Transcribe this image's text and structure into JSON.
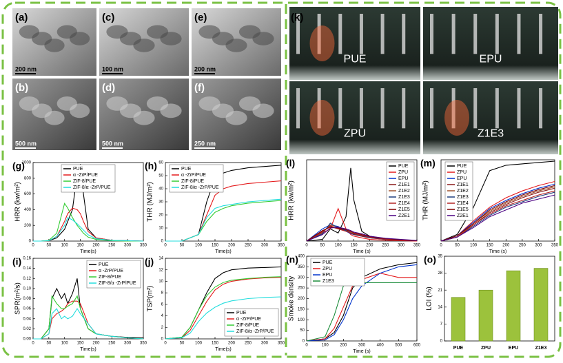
{
  "images": [
    {
      "label": "(a)",
      "scale": "200 nm"
    },
    {
      "label": "(c)",
      "scale": "100 nm"
    },
    {
      "label": "(e)",
      "scale": "200 nm"
    },
    {
      "label": "(b)",
      "scale": "500 nm"
    },
    {
      "label": "(d)",
      "scale": "500 nm"
    },
    {
      "label": "(f)",
      "scale": "250 nm"
    }
  ],
  "video": {
    "label": "(k)",
    "samples": [
      "PUE",
      "EPU",
      "ZPU",
      "Z1E3"
    ]
  },
  "chart_data": [
    {
      "type": "line",
      "panel": "(g)",
      "xlabel": "Time(s)",
      "ylabel": "HRR (kw/m²)",
      "legend": "top-center",
      "xlim": [
        0,
        350
      ],
      "xticks": [
        0,
        50,
        100,
        150,
        200,
        250,
        300,
        350
      ],
      "ylim": [
        0,
        1000
      ],
      "yticks": [
        0,
        200,
        400,
        600,
        800,
        1000
      ],
      "x": [
        0,
        25,
        50,
        75,
        100,
        110,
        125,
        140,
        150,
        160,
        175,
        200,
        250,
        300,
        350
      ],
      "series": [
        {
          "name": "PUE",
          "color": "#000000",
          "values": [
            0,
            0,
            5,
            40,
            150,
            250,
            400,
            850,
            980,
            600,
            150,
            40,
            10,
            5,
            0
          ]
        },
        {
          "name": "α -ZrP/PUE",
          "color": "#e41a1c",
          "values": [
            0,
            0,
            5,
            60,
            250,
            350,
            420,
            400,
            350,
            250,
            120,
            40,
            10,
            5,
            0
          ]
        },
        {
          "name": "ZIF-8/PUE",
          "color": "#33cc33",
          "values": [
            0,
            0,
            10,
            100,
            480,
            420,
            300,
            200,
            150,
            100,
            50,
            20,
            5,
            0,
            0
          ]
        },
        {
          "name": "ZIF-8/α -ZrP/PUE",
          "color": "#22dddd",
          "values": [
            0,
            0,
            5,
            60,
            200,
            300,
            270,
            220,
            180,
            140,
            80,
            30,
            10,
            5,
            0
          ]
        }
      ]
    },
    {
      "type": "line",
      "panel": "(h)",
      "xlabel": "Time(s)",
      "ylabel": "THR (MJ/m²)",
      "legend": "top-left",
      "xlim": [
        0,
        350
      ],
      "xticks": [
        0,
        50,
        100,
        150,
        200,
        250,
        300,
        350
      ],
      "ylim": [
        0,
        60
      ],
      "yticks": [
        0,
        10,
        20,
        30,
        40,
        50,
        60
      ],
      "x": [
        0,
        50,
        100,
        125,
        150,
        175,
        200,
        250,
        300,
        350
      ],
      "series": [
        {
          "name": "PUE",
          "color": "#000000",
          "values": [
            0,
            0,
            5,
            30,
            48,
            52,
            54,
            56,
            57,
            58
          ]
        },
        {
          "name": "α -ZrP/PUE",
          "color": "#e41a1c",
          "values": [
            0,
            0,
            5,
            20,
            35,
            40,
            42,
            44,
            45,
            46
          ]
        },
        {
          "name": "ZIF-8/PUE",
          "color": "#33cc33",
          "values": [
            0,
            0,
            5,
            15,
            22,
            25,
            27,
            29,
            30,
            31
          ]
        },
        {
          "name": "ZIF-8/α -ZrP/PUE",
          "color": "#22dddd",
          "values": [
            0,
            0,
            5,
            18,
            25,
            27,
            28,
            30,
            31,
            32
          ]
        }
      ]
    },
    {
      "type": "line",
      "panel": "(i)",
      "xlabel": "Time(s)",
      "ylabel": "SPR(m²/s)",
      "legend": "top-right",
      "xlim": [
        0,
        350
      ],
      "xticks": [
        0,
        50,
        100,
        150,
        200,
        250,
        300,
        350
      ],
      "ylim": [
        0,
        0.16
      ],
      "yticks": [
        {
          "value": 0,
          "label": "0.00"
        },
        0.02,
        0.04,
        0.06,
        0.08,
        {
          "value": 0.1,
          "label": "0.10"
        },
        0.12,
        0.14,
        0.16
      ],
      "x": [
        0,
        25,
        50,
        60,
        75,
        90,
        100,
        110,
        125,
        140,
        150,
        175,
        200,
        250,
        300,
        350
      ],
      "series": [
        {
          "name": "PUE",
          "color": "#000000",
          "values": [
            0,
            0,
            0.02,
            0.08,
            0.1,
            0.08,
            0.09,
            0.07,
            0.09,
            0.12,
            0.06,
            0.02,
            0.01,
            0.005,
            0.003,
            0.002
          ]
        },
        {
          "name": "α -ZrP/PUE",
          "color": "#e41a1c",
          "values": [
            0,
            0,
            0.01,
            0.04,
            0.05,
            0.055,
            0.06,
            0.07,
            0.075,
            0.075,
            0.07,
            0.03,
            0.01,
            0.005,
            0.002,
            0
          ]
        },
        {
          "name": "ZIF-8/PUE",
          "color": "#33cc33",
          "values": [
            0,
            0,
            0.02,
            0.085,
            0.07,
            0.06,
            0.06,
            0.065,
            0.07,
            0.085,
            0.06,
            0.02,
            0.01,
            0.005,
            0.002,
            0
          ]
        },
        {
          "name": "ZIF-8/α -ZrP/PUE",
          "color": "#22dddd",
          "values": [
            0,
            0,
            0.01,
            0.05,
            0.06,
            0.04,
            0.045,
            0.04,
            0.045,
            0.06,
            0.05,
            0.03,
            0.01,
            0.005,
            0.002,
            0
          ]
        }
      ]
    },
    {
      "type": "line",
      "panel": "(j)",
      "xlabel": "Time(s)",
      "ylabel": "TSP(m²)",
      "legend": "bottom-right",
      "xlim": [
        0,
        350
      ],
      "xticks": [
        0,
        50,
        100,
        150,
        200,
        250,
        300,
        350
      ],
      "ylim": [
        0,
        14
      ],
      "yticks": [
        0,
        2,
        4,
        6,
        8,
        10,
        12,
        14
      ],
      "x": [
        0,
        50,
        75,
        100,
        125,
        150,
        175,
        200,
        250,
        300,
        350
      ],
      "series": [
        {
          "name": "PUE",
          "color": "#000000",
          "values": [
            0,
            0.3,
            2,
            5,
            8,
            10.5,
            11.5,
            12,
            12.3,
            12.4,
            12.5
          ]
        },
        {
          "name": "α -ZrP/PUE",
          "color": "#e41a1c",
          "values": [
            0,
            0.2,
            1.5,
            4,
            6.5,
            8.5,
            9.5,
            10,
            10.4,
            10.6,
            10.7
          ]
        },
        {
          "name": "ZIF-8/PUE",
          "color": "#33cc33",
          "values": [
            0,
            0.3,
            2,
            5,
            7.5,
            9,
            9.8,
            10.2,
            10.5,
            10.7,
            10.8
          ]
        },
        {
          "name": "ZIF-8/α -ZrP/PUE",
          "color": "#22dddd",
          "values": [
            0,
            0.2,
            1,
            3,
            4.5,
            5.5,
            6.2,
            6.6,
            7,
            7.2,
            7.3
          ]
        }
      ]
    },
    {
      "type": "line",
      "panel": "(l)",
      "xlabel": "Time (s)",
      "ylabel": "HRR (kw/m²)",
      "legend": "top-right",
      "xlim": [
        0,
        350
      ],
      "xticks": [
        0,
        50,
        100,
        150,
        200,
        250,
        300,
        350
      ],
      "ylim": [
        0,
        1000
      ],
      "x": [
        0,
        50,
        75,
        100,
        125,
        140,
        150,
        175,
        200,
        250,
        300,
        350
      ],
      "series": [
        {
          "name": "PUE",
          "color": "#000000",
          "values": [
            0,
            20,
            150,
            100,
            300,
            900,
            500,
            120,
            60,
            30,
            10,
            5
          ]
        },
        {
          "name": "ZPU",
          "color": "#e41a1c",
          "values": [
            0,
            100,
            150,
            400,
            150,
            80,
            60,
            40,
            20,
            10,
            5,
            0
          ]
        },
        {
          "name": "EPU",
          "color": "#0033cc",
          "values": [
            0,
            150,
            200,
            180,
            120,
            90,
            80,
            60,
            40,
            20,
            10,
            5
          ]
        },
        {
          "name": "Z1E1",
          "color": "#8b1a1a",
          "values": [
            0,
            120,
            180,
            150,
            130,
            100,
            80,
            60,
            40,
            20,
            10,
            5
          ]
        },
        {
          "name": "Z1E2",
          "color": "#a0522d",
          "values": [
            0,
            100,
            200,
            170,
            140,
            110,
            90,
            70,
            50,
            30,
            15,
            5
          ]
        },
        {
          "name": "Z1E3",
          "color": "#1f3f7f",
          "values": [
            0,
            90,
            220,
            160,
            130,
            100,
            85,
            65,
            45,
            25,
            12,
            5
          ]
        },
        {
          "name": "Z1E4",
          "color": "#b22222",
          "values": [
            0,
            110,
            190,
            150,
            120,
            100,
            90,
            70,
            50,
            25,
            10,
            5
          ]
        },
        {
          "name": "Z1E5",
          "color": "#800000",
          "values": [
            0,
            130,
            170,
            160,
            140,
            120,
            100,
            80,
            55,
            30,
            15,
            5
          ]
        },
        {
          "name": "Z2E1",
          "color": "#4b0082",
          "values": [
            0,
            80,
            160,
            170,
            150,
            130,
            110,
            90,
            60,
            35,
            20,
            8
          ]
        }
      ]
    },
    {
      "type": "line",
      "panel": "(m)",
      "xlabel": "Time (s)",
      "ylabel": "THR (MJ/m²)",
      "legend": "top-left",
      "xlim": [
        0,
        350
      ],
      "xticks": [
        0,
        50,
        100,
        150,
        200,
        250,
        300,
        350
      ],
      "ylim": [
        0,
        60
      ],
      "x": [
        0,
        50,
        100,
        150,
        200,
        250,
        300,
        350
      ],
      "series": [
        {
          "name": "PUE",
          "color": "#000000",
          "values": [
            0,
            5,
            25,
            52,
            56,
            57,
            58,
            59
          ]
        },
        {
          "name": "ZPU",
          "color": "#e41a1c",
          "values": [
            0,
            4,
            15,
            25,
            32,
            37,
            41,
            44
          ]
        },
        {
          "name": "EPU",
          "color": "#0033cc",
          "values": [
            0,
            4,
            14,
            24,
            30,
            35,
            39,
            42
          ]
        },
        {
          "name": "Z1E1",
          "color": "#8b1a1a",
          "values": [
            0,
            3,
            12,
            21,
            27,
            32,
            36,
            39
          ]
        },
        {
          "name": "Z1E2",
          "color": "#a0522d",
          "values": [
            0,
            3,
            13,
            22,
            28,
            33,
            37,
            40
          ]
        },
        {
          "name": "Z1E3",
          "color": "#1f3f7f",
          "values": [
            0,
            3,
            11,
            19,
            25,
            29,
            33,
            36
          ]
        },
        {
          "name": "Z1E4",
          "color": "#b22222",
          "values": [
            0,
            3,
            12,
            20,
            26,
            30,
            34,
            37
          ]
        },
        {
          "name": "Z1E5",
          "color": "#800000",
          "values": [
            0,
            4,
            13,
            23,
            29,
            34,
            38,
            41
          ]
        },
        {
          "name": "Z2E1",
          "color": "#4b0082",
          "values": [
            0,
            3,
            10,
            18,
            23,
            28,
            31,
            34
          ]
        }
      ]
    },
    {
      "type": "line",
      "panel": "(n)",
      "xlabel": "Time (s)",
      "ylabel": "Smoke density",
      "legend": "top-left",
      "xlim": [
        0,
        600
      ],
      "xticks": [
        0,
        100,
        200,
        300,
        400,
        500,
        600
      ],
      "ylim": [
        0,
        400
      ],
      "yticks": [
        0,
        50,
        100,
        150,
        200,
        250,
        300,
        350,
        400
      ],
      "x": [
        0,
        100,
        150,
        200,
        250,
        300,
        400,
        500,
        600
      ],
      "series": [
        {
          "name": "PUE",
          "color": "#000000",
          "values": [
            0,
            10,
            40,
            120,
            250,
            300,
            340,
            360,
            370
          ]
        },
        {
          "name": "ZPU",
          "color": "#e41a1c",
          "values": [
            0,
            10,
            60,
            160,
            260,
            290,
            320,
            300,
            300
          ]
        },
        {
          "name": "EPU",
          "color": "#0033cc",
          "values": [
            0,
            5,
            30,
            100,
            200,
            260,
            320,
            350,
            360
          ]
        },
        {
          "name": "Z1E3",
          "color": "#1a8c3a",
          "values": [
            0,
            20,
            120,
            260,
            280,
            275,
            275,
            275,
            275
          ]
        }
      ]
    },
    {
      "type": "bar",
      "panel": "(o)",
      "ylabel": "LOI (%)",
      "color": "#9cc23c",
      "categories": [
        "PUE",
        "ZPU",
        "EPU",
        "Z1E3"
      ],
      "values": [
        18,
        21,
        29,
        30
      ],
      "ylim": [
        0,
        35
      ],
      "yticks": [
        0,
        7,
        14,
        21,
        28,
        35
      ]
    }
  ]
}
